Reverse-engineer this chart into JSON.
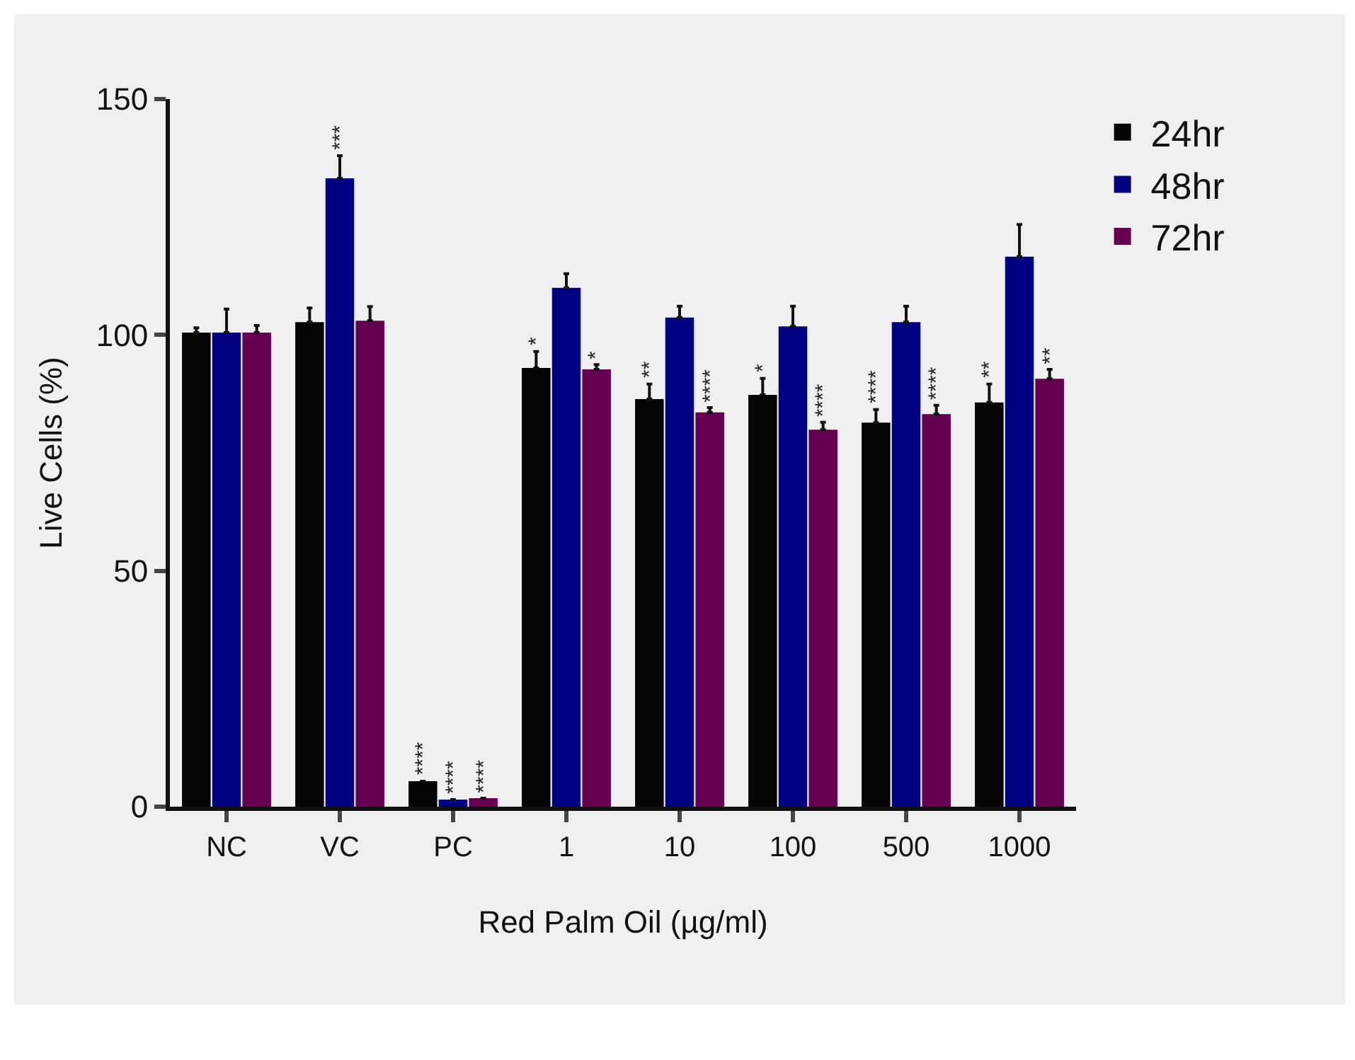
{
  "chart_data": {
    "type": "bar",
    "xlabel": "Red Palm Oil (µg/ml)",
    "ylabel": "Live Cells (%)",
    "categories": [
      "NC",
      "VC",
      "PC",
      "1",
      "10",
      "100",
      "500",
      "1000"
    ],
    "series": [
      {
        "name": "24hr",
        "color": "#050505",
        "values": [
          100.5,
          102.7,
          5.4,
          93,
          86.4,
          87.3,
          81.4,
          85.7
        ],
        "errors": [
          [
            100.5,
            101.5
          ],
          [
            102.7,
            105.7
          ],
          null,
          [
            93,
            96.5
          ],
          [
            86.4,
            89.6
          ],
          [
            87.3,
            90.8
          ],
          [
            81.4,
            84.2
          ],
          [
            85.7,
            89.6
          ]
        ],
        "value_labels": [
          null,
          null,
          "****",
          "*",
          "**",
          "*",
          "****",
          "**"
        ]
      },
      {
        "name": "48hr",
        "color": "#000080",
        "values": [
          100.5,
          133.2,
          1.5,
          110,
          103.7,
          101.8,
          102.7,
          116.6
        ],
        "errors": [
          [
            100.5,
            105.5
          ],
          [
            133.2,
            138
          ],
          null,
          [
            110,
            113
          ],
          [
            103.7,
            106.1
          ],
          [
            101.8,
            106.1
          ],
          [
            102.7,
            106.1
          ],
          [
            116.6,
            123.4
          ]
        ],
        "value_labels": [
          null,
          "***",
          "****",
          null,
          null,
          null,
          null,
          null
        ]
      },
      {
        "name": "72hr",
        "color": "#650050",
        "values": [
          100.5,
          103,
          1.8,
          92.7,
          83.6,
          79.9,
          83.2,
          90.7
        ],
        "errors": [
          [
            100.5,
            102
          ],
          [
            103,
            106
          ],
          null,
          [
            92.7,
            93.7
          ],
          [
            83.6,
            84.6
          ],
          [
            79.9,
            81.5
          ],
          [
            83.2,
            85.1
          ],
          [
            90.7,
            92.7
          ]
        ],
        "value_labels": [
          null,
          null,
          "****",
          "*",
          "****",
          "****",
          "****",
          "**"
        ]
      }
    ],
    "ylim": [
      0,
      150
    ],
    "yticks": [
      0,
      50,
      100,
      150
    ],
    "grid": false,
    "legend": "top right"
  }
}
